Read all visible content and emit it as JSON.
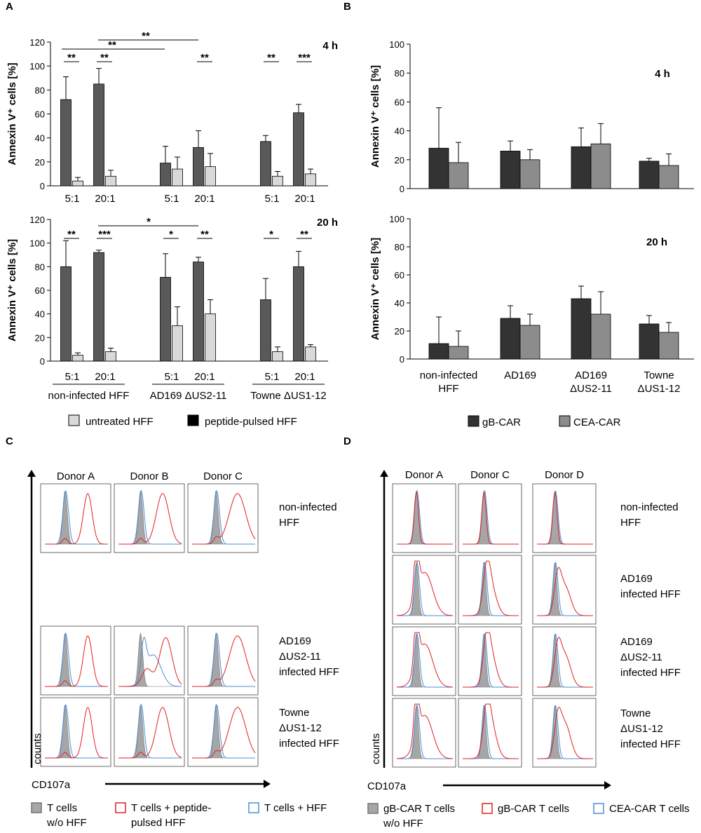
{
  "panel_labels": [
    "A",
    "B",
    "C",
    "D"
  ],
  "chart_data": [
    {
      "type": "bar",
      "title": "4 h",
      "y_label": "Annexin V⁺ cells [%]",
      "categories": [
        "5:1",
        "20:1",
        "5:1",
        "20:1",
        "5:1",
        "20:1"
      ],
      "series": [
        {
          "color": "#595959",
          "values": [
            72,
            85,
            19,
            32,
            37,
            61
          ],
          "errors": [
            19,
            13,
            14,
            14,
            5,
            7
          ]
        },
        {
          "color": "#d9d9d9",
          "values": [
            4,
            8,
            14,
            16,
            8,
            10
          ],
          "errors": [
            3,
            5,
            10,
            11,
            4,
            4
          ]
        }
      ],
      "ylim": [
        0,
        120
      ],
      "yticks": [
        0,
        20,
        40,
        60,
        80,
        100,
        120
      ],
      "annotations": [
        "**",
        "**",
        "**",
        "**",
        "**",
        "**",
        "***"
      ]
    },
    {
      "type": "bar",
      "title": "20 h",
      "y_label": "Annexin V⁺ cells [%]",
      "categories": [
        "5:1",
        "20:1",
        "5:1",
        "20:1",
        "5:1",
        "20:1"
      ],
      "groups": [
        "non-infected HFF",
        "AD169 ΔUS2-11",
        "Towne ΔUS1-12"
      ],
      "series": [
        {
          "name": "peptide-pulsed HFF",
          "color": "#595959",
          "values": [
            80,
            92,
            71,
            84,
            52,
            80
          ],
          "errors": [
            22,
            2,
            20,
            4,
            18,
            13
          ]
        },
        {
          "name": "untreated HFF",
          "color": "#d9d9d9",
          "values": [
            5,
            8,
            30,
            40,
            8,
            12
          ],
          "errors": [
            2,
            3,
            16,
            12,
            4,
            2
          ]
        }
      ],
      "ylim": [
        0,
        120
      ],
      "yticks": [
        0,
        20,
        40,
        60,
        80,
        100,
        120
      ],
      "annotations": [
        "*",
        "**",
        "***",
        "*",
        "**",
        "*",
        "**"
      ]
    },
    {
      "type": "bar",
      "title": "4 h",
      "y_label": "Annexin V⁺ cells [%]",
      "series": [
        {
          "color": "#333333",
          "values": [
            28,
            26,
            29,
            19
          ],
          "errors": [
            28,
            7,
            13,
            2
          ]
        },
        {
          "color": "#8c8c8c",
          "values": [
            18,
            20,
            31,
            16
          ],
          "errors": [
            14,
            7,
            14,
            8
          ]
        }
      ],
      "ylim": [
        0,
        100
      ],
      "yticks": [
        0,
        20,
        40,
        60,
        80,
        100
      ]
    },
    {
      "type": "bar",
      "title": "20 h",
      "y_label": "Annexin V⁺ cells [%]",
      "categories": [
        [
          "non-infected",
          "HFF"
        ],
        [
          "AD169"
        ],
        [
          "AD169",
          "ΔUS2-11"
        ],
        [
          "Towne",
          "ΔUS1-12"
        ]
      ],
      "series": [
        {
          "name": "gB-CAR",
          "color": "#333333",
          "values": [
            11,
            29,
            43,
            25
          ],
          "errors": [
            19,
            9,
            9,
            6
          ]
        },
        {
          "name": "CEA-CAR",
          "color": "#8c8c8c",
          "values": [
            9,
            24,
            32,
            19
          ],
          "errors": [
            11,
            8,
            16,
            7
          ]
        }
      ],
      "ylim": [
        0,
        100
      ],
      "yticks": [
        0,
        20,
        40,
        60,
        80,
        100
      ]
    }
  ],
  "panel_C": {
    "donors": [
      "Donor A",
      "Donor B",
      "Donor C"
    ],
    "rows": [
      [
        "non-infected",
        "HFF"
      ],
      [
        "AD169",
        "ΔUS2-11",
        "infected HFF"
      ],
      [
        "Towne",
        "ΔUS1-12",
        "infected HFF"
      ]
    ],
    "y_label": "counts",
    "x_label": "CD107a",
    "legend": [
      [
        "T cells",
        "w/o HFF"
      ],
      [
        "T cells + peptide-",
        "pulsed HFF"
      ],
      [
        "T cells + HFF"
      ]
    ]
  },
  "panel_D": {
    "donors": [
      "Donor A",
      "Donor C",
      "Donor D"
    ],
    "rows": [
      [
        "non-infected",
        "HFF"
      ],
      [
        "AD169",
        "infected HFF"
      ],
      [
        "AD169",
        "ΔUS2-11",
        "infected HFF"
      ],
      [
        "Towne",
        "ΔUS1-12",
        "infected HFF"
      ]
    ],
    "y_label": "counts",
    "x_label": "CD107a",
    "legend": [
      [
        "gB-CAR T cells",
        "w/o HFF"
      ],
      [
        "gB-CAR T cells"
      ],
      [
        "CEA-CAR T cells"
      ]
    ]
  }
}
